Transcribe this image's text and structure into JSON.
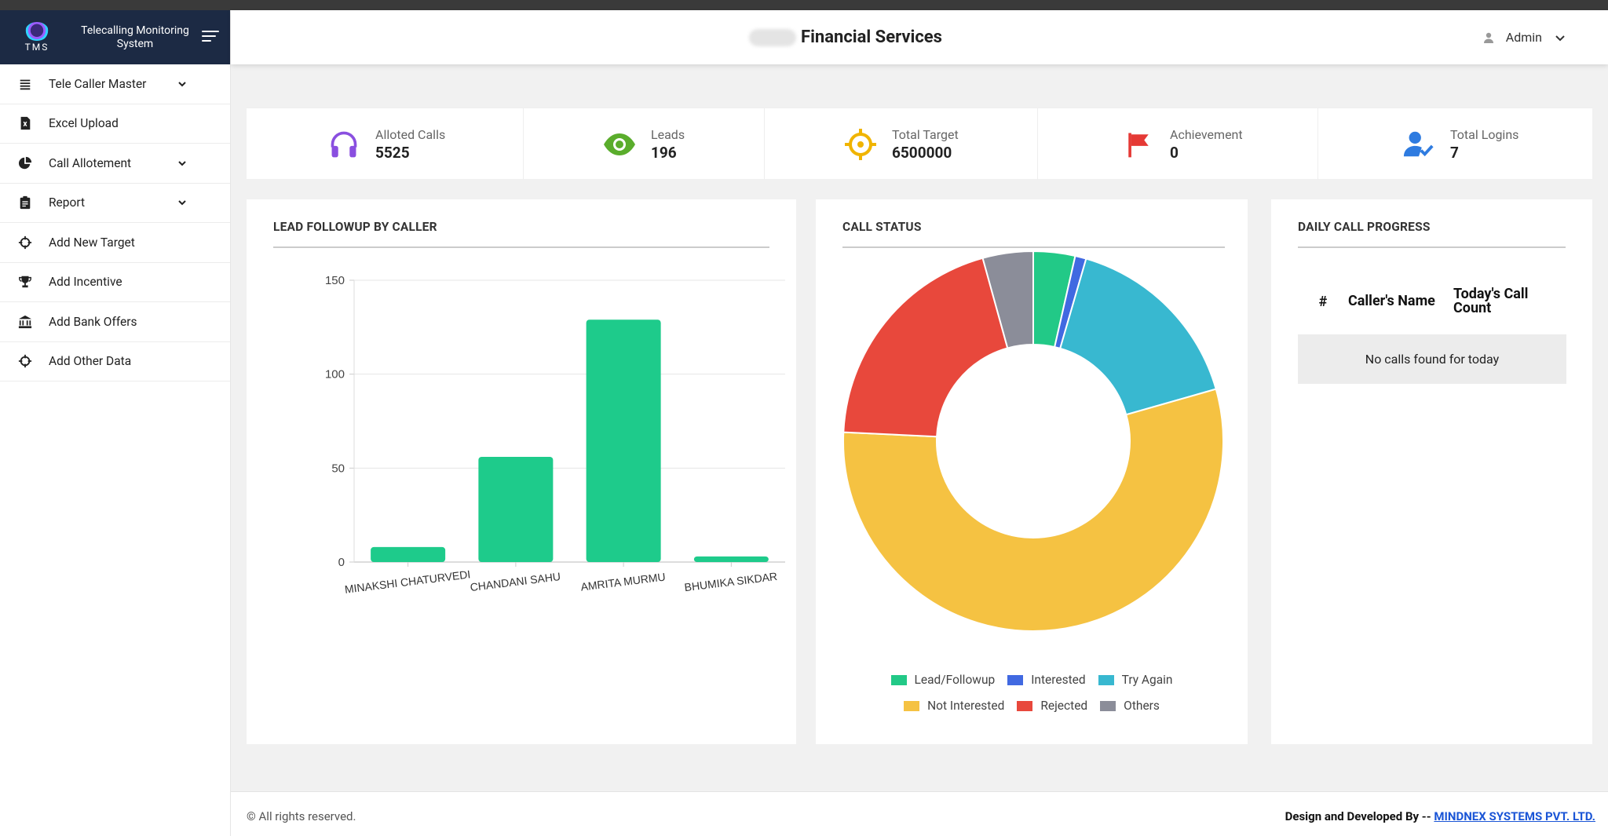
{
  "brand": {
    "logo_text": "TMS",
    "title": "Telecalling Monitoring System"
  },
  "sidebar": {
    "items": [
      {
        "label": "Tele Caller Master",
        "icon": "list-icon",
        "has_submenu": true
      },
      {
        "label": "Excel Upload",
        "icon": "excel-file-icon",
        "has_submenu": false
      },
      {
        "label": "Call Allotement",
        "icon": "pie-chart-icon",
        "has_submenu": true
      },
      {
        "label": "Report",
        "icon": "clipboard-icon",
        "has_submenu": true
      },
      {
        "label": "Add New Target",
        "icon": "crosshair-icon",
        "has_submenu": false
      },
      {
        "label": "Add Incentive",
        "icon": "trophy-icon",
        "has_submenu": false
      },
      {
        "label": "Add Bank Offers",
        "icon": "bank-icon",
        "has_submenu": false
      },
      {
        "label": "Add Other Data",
        "icon": "crosshair-icon",
        "has_submenu": false
      }
    ]
  },
  "header": {
    "company": "Financial Services",
    "user": "Admin"
  },
  "stats": [
    {
      "label": "Alloted Calls",
      "value": "5525",
      "icon": "headphones-icon",
      "color": "#8a4fe0"
    },
    {
      "label": "Leads",
      "value": "196",
      "icon": "eye-icon",
      "color": "#5aad2c"
    },
    {
      "label": "Total Target",
      "value": "6500000",
      "icon": "crosshair-icon",
      "color": "#f0b400"
    },
    {
      "label": "Achievement",
      "value": "0",
      "icon": "flag-icon",
      "color": "#e53935"
    },
    {
      "label": "Total Logins",
      "value": "7",
      "icon": "user-check-icon",
      "color": "#2e7be0"
    }
  ],
  "lead_chart": {
    "title": "LEAD FOLLOWUP BY CALLER"
  },
  "call_status": {
    "title": "CALL STATUS"
  },
  "daily": {
    "title": "DAILY CALL PROGRESS",
    "columns": [
      "#",
      "Caller's Name",
      "Today's Call Count"
    ],
    "empty_text": "No calls found for today"
  },
  "footer": {
    "copyright": "© All rights reserved.",
    "credit_prefix": "Design and Developed By --",
    "credit_link": "MINDNEX SYSTEMS PVT. LTD."
  },
  "chart_data": [
    {
      "type": "bar",
      "title": "LEAD FOLLOWUP BY CALLER",
      "categories": [
        "MINAKSHI CHATURVEDI",
        "CHANDANI SAHU",
        "AMRITA MURMU",
        "BHUMIKA SIKDAR"
      ],
      "values": [
        8,
        56,
        129,
        3
      ],
      "ylim": [
        0,
        150
      ],
      "yticks": [
        0,
        50,
        100,
        150
      ],
      "color": "#1ecb8b",
      "grid": true
    },
    {
      "type": "pie",
      "title": "CALL STATUS",
      "donut": true,
      "labels": [
        "Lead/Followup",
        "Interested",
        "Try Again",
        "Not Interested",
        "Rejected",
        "Others"
      ],
      "values": [
        196,
        52,
        889,
        3048,
        1103,
        237
      ],
      "colors": [
        "#22c987",
        "#4169e1",
        "#38b8d0",
        "#f5c242",
        "#e8483c",
        "#8b8d99"
      ],
      "legend": "bottom"
    }
  ]
}
